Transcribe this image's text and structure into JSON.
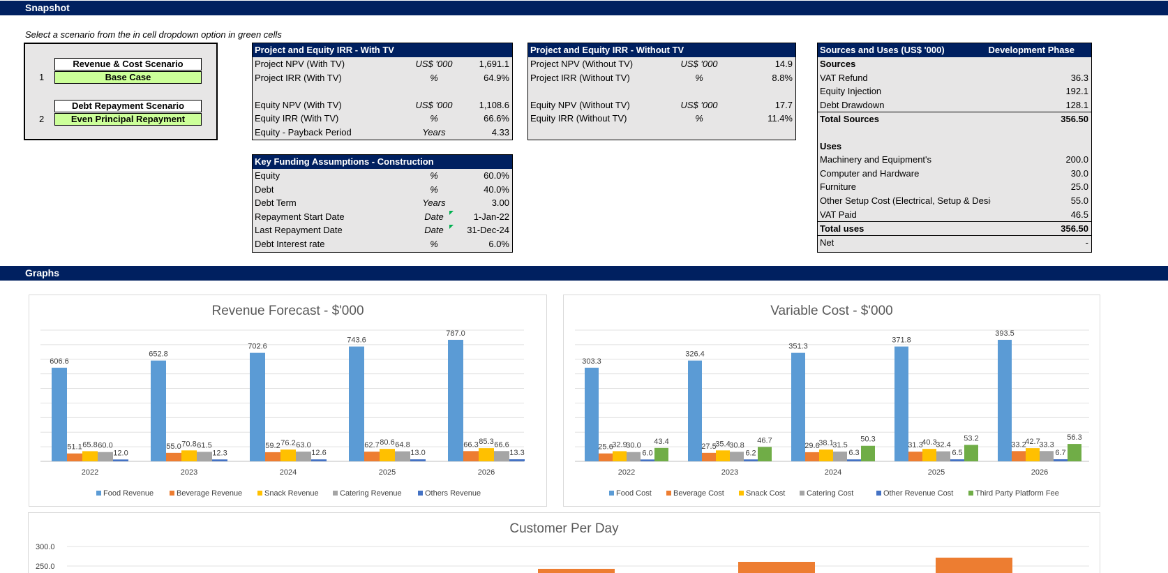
{
  "sections": {
    "snapshot": "Snapshot",
    "graphs": "Graphs"
  },
  "instruction": "Select a scenario from the in cell dropdown option in green cells",
  "scenario": {
    "revenue_label": "Revenue & Cost Scenario",
    "revenue_num": "1",
    "revenue_value": "Base Case",
    "debt_label": "Debt Repayment Scenario",
    "debt_num": "2",
    "debt_value": "Even Principal Repayment"
  },
  "irr_with_tv": {
    "title": "Project and Equity IRR - With TV",
    "rows": [
      {
        "label": "Project NPV (With TV)",
        "unit": "US$ '000",
        "value": "1,691.1"
      },
      {
        "label": "Project IRR  (With TV)",
        "unit": "%",
        "value": "64.9%"
      },
      {
        "label": "",
        "unit": "",
        "value": ""
      },
      {
        "label": "Equity NPV (With TV)",
        "unit": "US$ '000",
        "value": "1,108.6"
      },
      {
        "label": "Equity IRR  (With TV)",
        "unit": "%",
        "value": "66.6%"
      },
      {
        "label": "Equity - Payback Period",
        "unit": "Years",
        "value": "4.33"
      }
    ]
  },
  "irr_without_tv": {
    "title": "Project and Equity IRR - Without TV",
    "rows": [
      {
        "label": "Project NPV (Without TV)",
        "unit": "US$ '000",
        "value": "14.9"
      },
      {
        "label": "Project IRR (Without TV)",
        "unit": "%",
        "value": "8.8%"
      },
      {
        "label": "",
        "unit": "",
        "value": ""
      },
      {
        "label": "Equity NPV (Without TV)",
        "unit": "US$ '000",
        "value": "17.7"
      },
      {
        "label": "Equity IRR (Without TV)",
        "unit": "%",
        "value": "11.4%"
      },
      {
        "label": "",
        "unit": "",
        "value": ""
      }
    ]
  },
  "funding": {
    "title": "Key Funding Assumptions - Construction",
    "rows": [
      {
        "label": "Equity",
        "unit": "%",
        "value": "60.0%"
      },
      {
        "label": "Debt",
        "unit": "%",
        "value": "40.0%"
      },
      {
        "label": "Debt Term",
        "unit": "Years",
        "value": "3.00"
      },
      {
        "label": "Repayment Start Date",
        "unit": "Date",
        "value": "1-Jan-22"
      },
      {
        "label": "Last Repayment Date",
        "unit": "Date",
        "value": "31-Dec-24"
      },
      {
        "label": "Debt Interest rate",
        "unit": "%",
        "value": "6.0%"
      }
    ]
  },
  "sources_uses": {
    "title": "Sources and Uses (US$ '000)",
    "phase": "Development Phase",
    "rows": [
      {
        "label": "Sources",
        "value": "",
        "style": "bold"
      },
      {
        "label": "VAT Refund",
        "value": "36.3",
        "style": ""
      },
      {
        "label": "Equity Injection",
        "value": "192.1",
        "style": ""
      },
      {
        "label": "Debt Drawdown",
        "value": "128.1",
        "style": ""
      },
      {
        "label": "Total Sources",
        "value": "356.50",
        "style": "bold topline"
      },
      {
        "label": "",
        "value": "",
        "style": ""
      },
      {
        "label": "Uses",
        "value": "",
        "style": "bold"
      },
      {
        "label": "Machinery and Equipment's",
        "value": "200.0",
        "style": ""
      },
      {
        "label": "Computer and Hardware",
        "value": "30.0",
        "style": ""
      },
      {
        "label": "Furniture",
        "value": "25.0",
        "style": ""
      },
      {
        "label": "Other Setup Cost (Electrical, Setup & Design",
        "value": "55.0",
        "style": ""
      },
      {
        "label": "VAT Paid",
        "value": "46.5",
        "style": ""
      },
      {
        "label": "Total uses",
        "value": "356.50",
        "style": "bold topline"
      },
      {
        "label": "Net",
        "value": "-",
        "style": "topline"
      }
    ]
  },
  "chart_data": [
    {
      "type": "bar",
      "title": "Revenue Forecast - $'000",
      "categories": [
        "2022",
        "2023",
        "2024",
        "2025",
        "2026"
      ],
      "ylim": [
        0,
        850
      ],
      "series": [
        {
          "name": "Food Revenue",
          "color": "#5b9bd5",
          "values": [
            606.6,
            652.8,
            702.6,
            743.6,
            787.0
          ]
        },
        {
          "name": "Beverage Revenue",
          "color": "#ed7d31",
          "values": [
            51.1,
            55.0,
            59.2,
            62.7,
            66.3
          ]
        },
        {
          "name": "Snack Revenue",
          "color": "#ffc000",
          "values": [
            65.8,
            70.8,
            76.2,
            80.6,
            85.3
          ]
        },
        {
          "name": "Catering Revenue",
          "color": "#a5a5a5",
          "values": [
            60.0,
            61.5,
            63.0,
            64.8,
            66.6
          ]
        },
        {
          "name": "Others Revenue",
          "color": "#4472c4",
          "values": [
            12.0,
            12.3,
            12.6,
            13.0,
            13.3
          ]
        }
      ]
    },
    {
      "type": "bar",
      "title": "Variable Cost - $'000",
      "categories": [
        "2022",
        "2023",
        "2024",
        "2025",
        "2026"
      ],
      "ylim": [
        0,
        425
      ],
      "series": [
        {
          "name": "Food Cost",
          "color": "#5b9bd5",
          "values": [
            303.3,
            326.4,
            351.3,
            371.8,
            393.5
          ]
        },
        {
          "name": "Beverage Cost",
          "color": "#ed7d31",
          "values": [
            25.6,
            27.5,
            29.6,
            31.3,
            33.2
          ]
        },
        {
          "name": "Snack Cost",
          "color": "#ffc000",
          "values": [
            32.9,
            35.4,
            38.1,
            40.3,
            42.7
          ]
        },
        {
          "name": "Catering Cost",
          "color": "#a5a5a5",
          "values": [
            30.0,
            30.8,
            31.5,
            32.4,
            33.3
          ]
        },
        {
          "name": "Other Revenue Cost",
          "color": "#4472c4",
          "values": [
            6.0,
            6.2,
            6.3,
            6.5,
            6.7
          ]
        },
        {
          "name": "Third Party Platform Fee",
          "color": "#70ad47",
          "values": [
            43.4,
            46.7,
            50.3,
            53.2,
            56.3
          ]
        }
      ]
    },
    {
      "type": "bar",
      "title": "Customer Per Day",
      "yticks": [
        "300.0",
        "250.0"
      ]
    }
  ]
}
